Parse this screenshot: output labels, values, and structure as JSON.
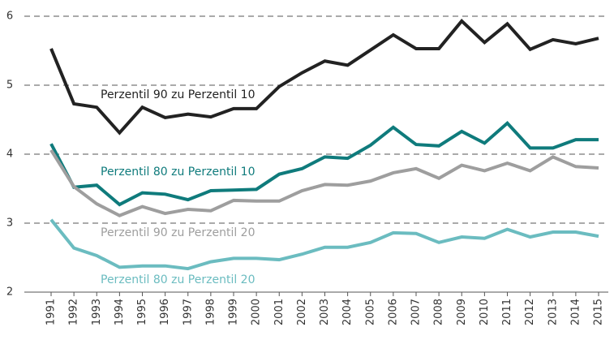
{
  "chart_data": {
    "type": "line",
    "categories": [
      "1991",
      "1992",
      "1993",
      "1994",
      "1995",
      "1996",
      "1997",
      "1998",
      "1999",
      "2000",
      "2001",
      "2002",
      "2003",
      "2004",
      "2005",
      "2006",
      "2007",
      "2008",
      "2009",
      "2010",
      "2011",
      "2012",
      "2013",
      "2014",
      "2015"
    ],
    "series": [
      {
        "name": "Perzentil 90 zu Perzentil 10",
        "color": "#222222",
        "values": [
          5.53,
          4.73,
          4.68,
          4.31,
          4.68,
          4.53,
          4.58,
          4.54,
          4.66,
          4.66,
          4.98,
          5.18,
          5.35,
          5.29,
          5.51,
          5.73,
          5.53,
          5.53,
          5.93,
          5.62,
          5.89,
          5.52,
          5.66,
          5.6,
          5.68
        ]
      },
      {
        "name": "Perzentil 80 zu Perzentil 10",
        "color": "#0f7b7c",
        "values": [
          4.15,
          3.52,
          3.55,
          3.27,
          3.44,
          3.42,
          3.34,
          3.47,
          3.48,
          3.49,
          3.71,
          3.79,
          3.96,
          3.94,
          4.13,
          4.39,
          4.14,
          4.12,
          4.33,
          4.16,
          4.45,
          4.09,
          4.09,
          4.21,
          4.21
        ]
      },
      {
        "name": "Perzentil 90 zu Perzentil 20",
        "color": "#9e9e9e",
        "values": [
          4.06,
          3.53,
          3.28,
          3.11,
          3.24,
          3.14,
          3.2,
          3.18,
          3.33,
          3.32,
          3.32,
          3.47,
          3.56,
          3.55,
          3.61,
          3.73,
          3.79,
          3.65,
          3.84,
          3.76,
          3.87,
          3.76,
          3.96,
          3.82,
          3.8
        ]
      },
      {
        "name": "Perzentil 80 zu Perzentil 20",
        "color": "#6bbcc0",
        "values": [
          3.05,
          2.64,
          2.53,
          2.36,
          2.38,
          2.38,
          2.34,
          2.44,
          2.49,
          2.49,
          2.47,
          2.55,
          2.65,
          2.65,
          2.72,
          2.86,
          2.85,
          2.72,
          2.8,
          2.78,
          2.91,
          2.8,
          2.87,
          2.87,
          2.81
        ]
      }
    ],
    "ylim": [
      2,
      6
    ],
    "yticks": [
      2,
      3,
      4,
      5,
      6
    ],
    "grid": true
  }
}
